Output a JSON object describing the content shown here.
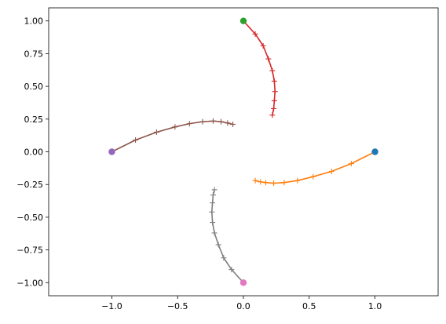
{
  "chart_data": {
    "type": "line",
    "title": "",
    "xlabel": "",
    "ylabel": "",
    "xlim": [
      -1.48,
      1.48
    ],
    "ylim": [
      -1.1,
      1.1
    ],
    "grid": false,
    "legend": "none",
    "x_ticks": [
      "−1.0",
      "−0.5",
      "0.0",
      "0.5",
      "1.0"
    ],
    "x_tick_values": [
      -1.0,
      -0.5,
      0.0,
      0.5,
      1.0
    ],
    "y_ticks": [
      "1.00",
      "0.75",
      "0.50",
      "0.25",
      "0.00",
      "−0.25",
      "−0.50",
      "−0.75",
      "−1.00"
    ],
    "y_tick_values": [
      1.0,
      0.75,
      0.5,
      0.25,
      0.0,
      -0.25,
      -0.5,
      -0.75,
      -1.0
    ],
    "start_points": [
      {
        "x": 1.0,
        "y": 0.0,
        "color": "#1f77b4"
      },
      {
        "x": 0.0,
        "y": 1.0,
        "color": "#2ca02c"
      },
      {
        "x": -1.0,
        "y": 0.0,
        "color": "#9467bd"
      },
      {
        "x": 0.0,
        "y": -1.0,
        "color": "#e377c2"
      }
    ],
    "series": [
      {
        "color": "#ff7f0e",
        "x": [
          1.0,
          0.82,
          0.67,
          0.53,
          0.41,
          0.31,
          0.23,
          0.17,
          0.13,
          0.09
        ],
        "y": [
          0.0,
          -0.09,
          -0.15,
          -0.19,
          -0.22,
          -0.235,
          -0.24,
          -0.235,
          -0.23,
          -0.22
        ]
      },
      {
        "color": "#d62728",
        "x": [
          0.0,
          0.09,
          0.15,
          0.19,
          0.22,
          0.235,
          0.24,
          0.235,
          0.23,
          0.22
        ],
        "y": [
          1.0,
          0.9,
          0.81,
          0.71,
          0.62,
          0.54,
          0.46,
          0.39,
          0.33,
          0.28
        ]
      },
      {
        "color": "#8c564b",
        "x": [
          -1.0,
          -0.82,
          -0.66,
          -0.52,
          -0.41,
          -0.31,
          -0.23,
          -0.17,
          -0.12,
          -0.08
        ],
        "y": [
          0.0,
          0.09,
          0.15,
          0.19,
          0.215,
          0.23,
          0.235,
          0.23,
          0.22,
          0.21
        ]
      },
      {
        "color": "#7f7f7f",
        "x": [
          0.0,
          -0.09,
          -0.15,
          -0.19,
          -0.22,
          -0.235,
          -0.24,
          -0.235,
          -0.23,
          -0.22
        ],
        "y": [
          -1.0,
          -0.9,
          -0.81,
          -0.71,
          -0.62,
          -0.54,
          -0.46,
          -0.39,
          -0.33,
          -0.29
        ]
      }
    ]
  }
}
